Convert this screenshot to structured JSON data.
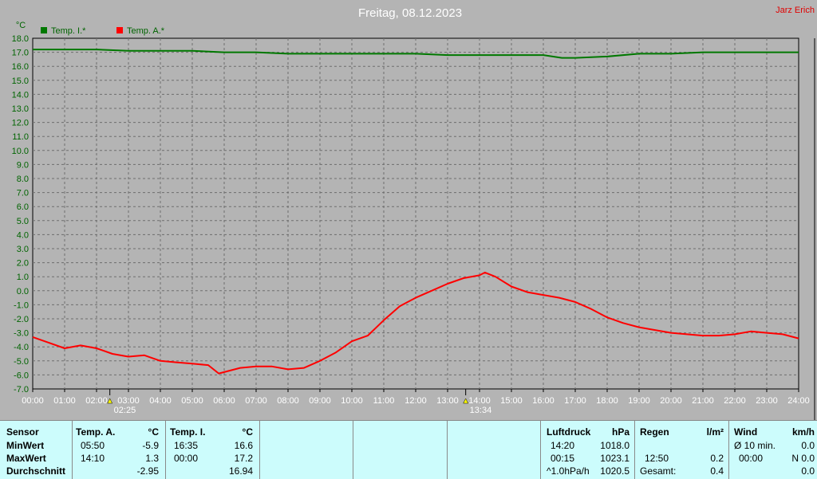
{
  "chart_data": {
    "type": "line",
    "title": "Freitag, 08.12.2023",
    "author": "Jarz Erich",
    "ylabel": "°C",
    "ylim": [
      -7,
      18
    ],
    "yticks": [
      "18.0",
      "17.0",
      "16.0",
      "15.0",
      "14.0",
      "13.0",
      "12.0",
      "11.0",
      "10.0",
      "9.0",
      "8.0",
      "7.0",
      "6.0",
      "5.0",
      "4.0",
      "3.0",
      "2.0",
      "1.0",
      "0.0",
      "-1.0",
      "-2.0",
      "-3.0",
      "-4.0",
      "-5.0",
      "-6.0",
      "-7.0"
    ],
    "xlim": [
      0,
      24
    ],
    "xticks": [
      "00:00",
      "01:00",
      "02:00",
      "03:00",
      "04:00",
      "05:00",
      "06:00",
      "07:00",
      "08:00",
      "09:00",
      "10:00",
      "11:00",
      "12:00",
      "13:00",
      "14:00",
      "15:00",
      "16:00",
      "17:00",
      "18:00",
      "19:00",
      "20:00",
      "21:00",
      "22:00",
      "23:00",
      "24:00"
    ],
    "grid": true,
    "legend_position": "top-left",
    "sun_markers": [
      {
        "time": 2.417,
        "label": "02:25"
      },
      {
        "time": 13.567,
        "label": "13:34"
      }
    ],
    "series": [
      {
        "name": "Temp. I.*",
        "color": "#007800",
        "x": [
          0,
          1,
          2,
          3,
          4,
          5,
          6,
          7,
          8,
          9,
          10,
          11,
          12,
          13,
          14,
          15,
          16,
          16.58,
          17,
          18,
          19,
          20,
          21,
          22,
          23,
          24
        ],
        "y": [
          17.2,
          17.2,
          17.2,
          17.1,
          17.1,
          17.1,
          17.0,
          17.0,
          16.9,
          16.9,
          16.9,
          16.9,
          16.9,
          16.8,
          16.8,
          16.8,
          16.8,
          16.6,
          16.6,
          16.7,
          16.9,
          16.9,
          17.0,
          17.0,
          17.0,
          17.0
        ]
      },
      {
        "name": "Temp. A.*",
        "color": "#ff0000",
        "x": [
          0,
          0.5,
          1,
          1.5,
          2,
          2.5,
          3,
          3.5,
          4,
          4.5,
          5,
          5.5,
          5.83,
          6.5,
          7,
          7.5,
          8,
          8.5,
          9,
          9.5,
          10,
          10.5,
          11,
          11.5,
          12,
          12.5,
          13,
          13.5,
          14,
          14.17,
          14.5,
          15,
          15.5,
          16,
          16.5,
          17,
          17.5,
          18,
          18.5,
          19,
          19.5,
          20,
          20.5,
          21,
          21.5,
          22,
          22.5,
          23,
          23.5,
          24
        ],
        "y": [
          -3.3,
          -3.7,
          -4.1,
          -3.9,
          -4.1,
          -4.5,
          -4.7,
          -4.6,
          -5.0,
          -5.1,
          -5.2,
          -5.3,
          -5.9,
          -5.5,
          -5.4,
          -5.4,
          -5.6,
          -5.5,
          -5.0,
          -4.4,
          -3.6,
          -3.2,
          -2.1,
          -1.1,
          -0.5,
          0.0,
          0.5,
          0.9,
          1.1,
          1.3,
          1.0,
          0.3,
          -0.1,
          -0.3,
          -0.5,
          -0.8,
          -1.3,
          -1.9,
          -2.3,
          -2.6,
          -2.8,
          -3.0,
          -3.1,
          -3.2,
          -3.2,
          -3.1,
          -2.9,
          -3.0,
          -3.1,
          -3.4
        ]
      }
    ]
  },
  "stats": {
    "sensor": {
      "h": "Sensor",
      "min": "MinWert",
      "max": "MaxWert",
      "avg": "Durchschnitt"
    },
    "temp_a": {
      "h": "Temp. A.",
      "unit": "°C",
      "min_time": "05:50",
      "min": "-5.9",
      "max_time": "14:10",
      "max": "1.3",
      "avg": "-2.95"
    },
    "temp_i": {
      "h": "Temp. I.",
      "unit": "°C",
      "min_time": "16:35",
      "min": "16.6",
      "max_time": "00:00",
      "max": "17.2",
      "avg": "16.94"
    },
    "pressure": {
      "h": "Luftdruck",
      "unit": "hPa",
      "min_time": "14:20",
      "min": "1018.0",
      "max_time": "00:15",
      "max": "1023.1",
      "trend": "^1.0hPa/h",
      "avg": "1020.5"
    },
    "rain": {
      "h": "Regen",
      "unit": "l/m²",
      "max_time": "12:50",
      "max": "0.2",
      "total_label": "Gesamt:",
      "total": "0.4"
    },
    "wind": {
      "h": "Wind",
      "unit": "km/h",
      "min_label": "Ø 10 min.",
      "min": "0.0",
      "max_time": "00:00",
      "max": "N 0.0",
      "avg": "0.0"
    }
  }
}
